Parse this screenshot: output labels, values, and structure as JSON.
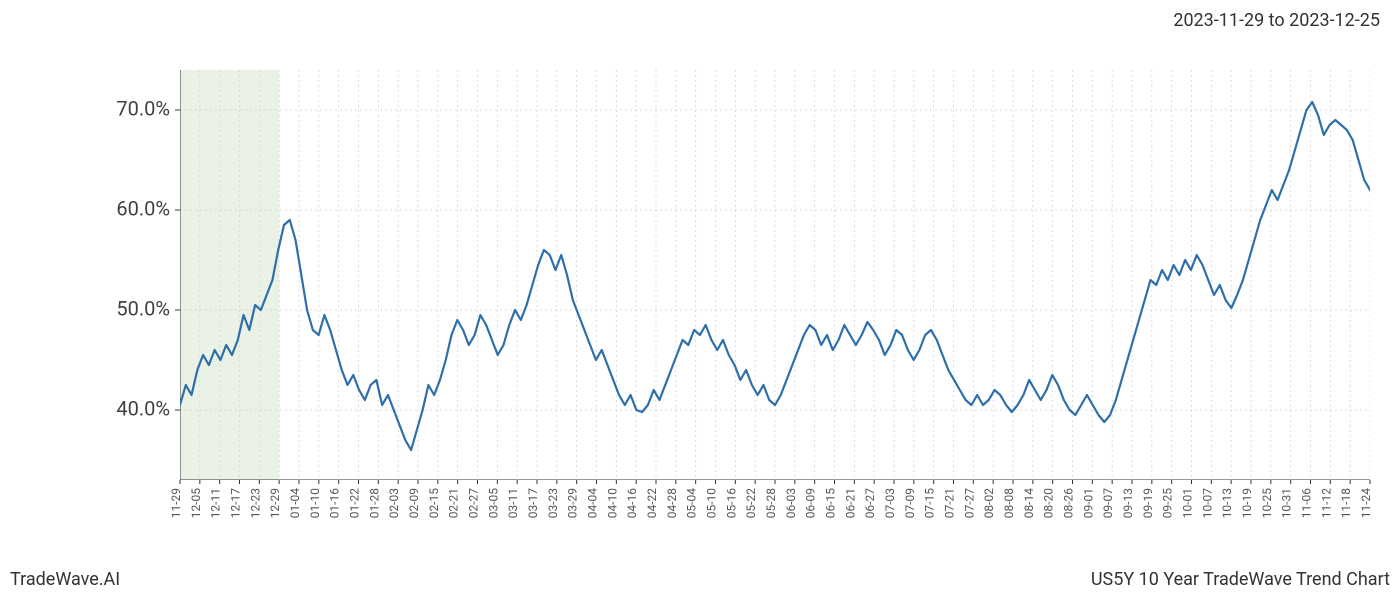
{
  "header": {
    "date_range": "2023-11-29 to 2023-12-25"
  },
  "footer": {
    "left": "TradeWave.AI",
    "right": "US5Y 10 Year TradeWave Trend Chart"
  },
  "chart": {
    "type": "line",
    "background_color": "#ffffff",
    "grid_color": "#d0d0d0",
    "axis_color": "#333333",
    "line_color": "#2e6faa",
    "line_width": 2.2,
    "highlight_band": {
      "fill": "#d8e8d0",
      "opacity": 0.55,
      "x_start_index": 0,
      "x_end_index": 5
    },
    "y_axis": {
      "min": 33,
      "max": 74,
      "ticks": [
        40.0,
        50.0,
        60.0,
        70.0
      ],
      "tick_labels": [
        "40.0%",
        "50.0%",
        "60.0%",
        "70.0%"
      ],
      "label_fontsize": 20,
      "label_color": "#404040"
    },
    "x_axis": {
      "labels": [
        "11-29",
        "12-05",
        "12-11",
        "12-17",
        "12-23",
        "12-29",
        "01-04",
        "01-10",
        "01-16",
        "01-22",
        "01-28",
        "02-03",
        "02-09",
        "02-15",
        "02-21",
        "02-27",
        "03-05",
        "03-11",
        "03-17",
        "03-23",
        "03-29",
        "04-04",
        "04-10",
        "04-16",
        "04-22",
        "04-28",
        "05-04",
        "05-10",
        "05-16",
        "05-22",
        "05-28",
        "06-03",
        "06-09",
        "06-15",
        "06-21",
        "06-27",
        "07-03",
        "07-09",
        "07-15",
        "07-21",
        "07-27",
        "08-02",
        "08-08",
        "08-14",
        "08-20",
        "08-26",
        "09-01",
        "09-07",
        "09-13",
        "09-19",
        "09-25",
        "10-01",
        "10-07",
        "10-13",
        "10-19",
        "10-25",
        "10-31",
        "11-06",
        "11-12",
        "11-18",
        "11-24"
      ],
      "label_fontsize": 12,
      "label_color": "#555555",
      "rotation": -90
    },
    "series": {
      "values": [
        40.5,
        42.5,
        41.5,
        44.0,
        45.5,
        44.5,
        46.0,
        45.0,
        46.5,
        45.5,
        47.0,
        49.5,
        48.0,
        50.5,
        50.0,
        51.5,
        53.0,
        56.0,
        58.5,
        59.0,
        57.0,
        53.5,
        50.0,
        48.0,
        47.5,
        49.5,
        48.0,
        46.0,
        44.0,
        42.5,
        43.5,
        42.0,
        41.0,
        42.5,
        43.0,
        40.5,
        41.5,
        40.0,
        38.5,
        37.0,
        36.0,
        38.0,
        40.0,
        42.5,
        41.5,
        43.0,
        45.0,
        47.5,
        49.0,
        48.0,
        46.5,
        47.5,
        49.5,
        48.5,
        47.0,
        45.5,
        46.5,
        48.5,
        50.0,
        49.0,
        50.5,
        52.5,
        54.5,
        56.0,
        55.5,
        54.0,
        55.5,
        53.5,
        51.0,
        49.5,
        48.0,
        46.5,
        45.0,
        46.0,
        44.5,
        43.0,
        41.5,
        40.5,
        41.5,
        40.0,
        39.8,
        40.5,
        42.0,
        41.0,
        42.5,
        44.0,
        45.5,
        47.0,
        46.5,
        48.0,
        47.5,
        48.5,
        47.0,
        46.0,
        47.0,
        45.5,
        44.5,
        43.0,
        44.0,
        42.5,
        41.5,
        42.5,
        41.0,
        40.5,
        41.5,
        43.0,
        44.5,
        46.0,
        47.5,
        48.5,
        48.0,
        46.5,
        47.5,
        46.0,
        47.0,
        48.5,
        47.5,
        46.5,
        47.5,
        48.8,
        48.0,
        47.0,
        45.5,
        46.5,
        48.0,
        47.5,
        46.0,
        45.0,
        46.0,
        47.5,
        48.0,
        47.0,
        45.5,
        44.0,
        43.0,
        42.0,
        41.0,
        40.5,
        41.5,
        40.5,
        41.0,
        42.0,
        41.5,
        40.5,
        39.8,
        40.5,
        41.5,
        43.0,
        42.0,
        41.0,
        42.0,
        43.5,
        42.5,
        41.0,
        40.0,
        39.5,
        40.5,
        41.5,
        40.5,
        39.5,
        38.8,
        39.5,
        41.0,
        43.0,
        45.0,
        47.0,
        49.0,
        51.0,
        53.0,
        52.5,
        54.0,
        53.0,
        54.5,
        53.5,
        55.0,
        54.0,
        55.5,
        54.5,
        53.0,
        51.5,
        52.5,
        51.0,
        50.2,
        51.5,
        53.0,
        55.0,
        57.0,
        59.0,
        60.5,
        62.0,
        61.0,
        62.5,
        64.0,
        66.0,
        68.0,
        70.0,
        70.8,
        69.5,
        67.5,
        68.5,
        69.0,
        68.5,
        68.0,
        67.0,
        65.0,
        63.0,
        62.0
      ]
    }
  }
}
